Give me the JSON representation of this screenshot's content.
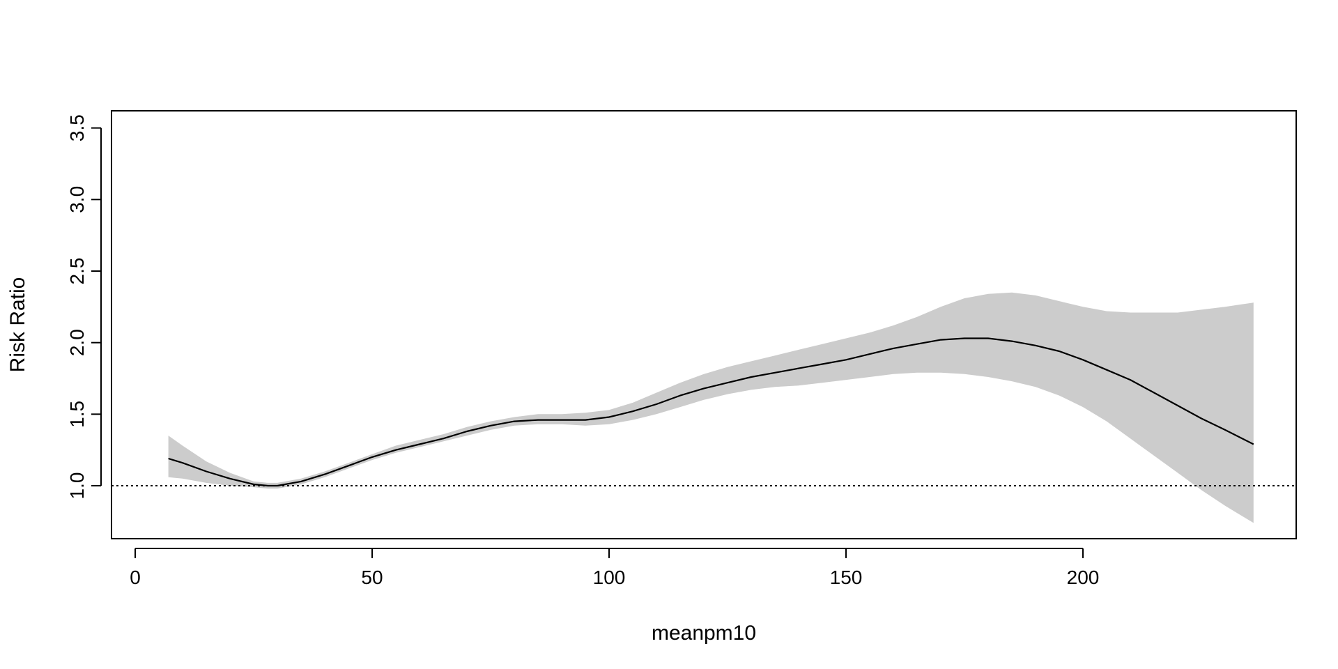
{
  "chart_data": {
    "type": "line",
    "xlabel": "meanpm10",
    "ylabel": "Risk Ratio",
    "xlim": [
      -5,
      245
    ],
    "ylim": [
      0.63,
      3.62
    ],
    "x_ticks": [
      0,
      50,
      100,
      150,
      200
    ],
    "y_ticks": [
      1.0,
      1.5,
      2.0,
      2.5,
      3.0,
      3.5
    ],
    "x_tick_labels": [
      "0",
      "50",
      "100",
      "150",
      "200"
    ],
    "y_tick_labels": [
      "1.0",
      "1.5",
      "2.0",
      "2.5",
      "3.0",
      "3.5"
    ],
    "reference_line": {
      "y": 1.0,
      "style": "dotted"
    },
    "band_color": "#cccccc",
    "line_color": "#000000",
    "grid": false,
    "series": [
      {
        "x": [
          7,
          10,
          15,
          20,
          25,
          28,
          30,
          35,
          40,
          45,
          50,
          55,
          60,
          65,
          70,
          75,
          80,
          85,
          90,
          95,
          100,
          105,
          110,
          115,
          120,
          125,
          130,
          135,
          140,
          145,
          150,
          155,
          160,
          165,
          170,
          175,
          180,
          185,
          190,
          195,
          200,
          205,
          210,
          215,
          220,
          225,
          230,
          236
        ],
        "y": [
          1.19,
          1.16,
          1.1,
          1.05,
          1.01,
          1.0,
          1.0,
          1.03,
          1.08,
          1.14,
          1.2,
          1.25,
          1.29,
          1.33,
          1.38,
          1.42,
          1.45,
          1.46,
          1.46,
          1.46,
          1.48,
          1.52,
          1.57,
          1.63,
          1.68,
          1.72,
          1.76,
          1.79,
          1.82,
          1.85,
          1.88,
          1.92,
          1.96,
          1.99,
          2.02,
          2.03,
          2.03,
          2.01,
          1.98,
          1.94,
          1.88,
          1.81,
          1.74,
          1.65,
          1.56,
          1.47,
          1.39,
          1.29
        ],
        "lower": [
          1.06,
          1.05,
          1.02,
          1.0,
          0.99,
          0.98,
          0.98,
          1.01,
          1.06,
          1.12,
          1.18,
          1.23,
          1.27,
          1.31,
          1.35,
          1.39,
          1.42,
          1.43,
          1.43,
          1.42,
          1.43,
          1.46,
          1.5,
          1.55,
          1.6,
          1.64,
          1.67,
          1.69,
          1.7,
          1.72,
          1.74,
          1.76,
          1.78,
          1.79,
          1.79,
          1.78,
          1.76,
          1.73,
          1.69,
          1.63,
          1.55,
          1.45,
          1.33,
          1.21,
          1.09,
          0.97,
          0.86,
          0.74
        ],
        "upper": [
          1.35,
          1.28,
          1.17,
          1.09,
          1.03,
          1.02,
          1.02,
          1.05,
          1.1,
          1.16,
          1.22,
          1.28,
          1.32,
          1.36,
          1.41,
          1.45,
          1.48,
          1.5,
          1.5,
          1.51,
          1.53,
          1.58,
          1.65,
          1.72,
          1.78,
          1.83,
          1.87,
          1.91,
          1.95,
          1.99,
          2.03,
          2.07,
          2.12,
          2.18,
          2.25,
          2.31,
          2.34,
          2.35,
          2.33,
          2.29,
          2.25,
          2.22,
          2.21,
          2.21,
          2.21,
          2.23,
          2.25,
          2.28
        ]
      }
    ]
  }
}
